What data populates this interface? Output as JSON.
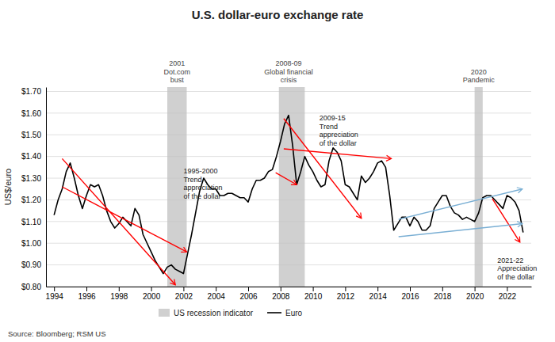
{
  "chart_data": {
    "type": "line",
    "title": "U.S. dollar-euro exchange rate",
    "y_label": "US$/euro",
    "source": "Source: Bloomberg; RSM US",
    "xlim": [
      1993.5,
      2023.5
    ],
    "xticks": [
      1994,
      1996,
      1998,
      2000,
      2002,
      2004,
      2006,
      2008,
      2010,
      2012,
      2014,
      2016,
      2018,
      2020,
      2022
    ],
    "ylim": [
      0.8,
      1.72
    ],
    "yticks": [
      {
        "value": 0.8,
        "label": "$0.80"
      },
      {
        "value": 0.9,
        "label": "$0.90"
      },
      {
        "value": 1.0,
        "label": "$1.00"
      },
      {
        "value": 1.1,
        "label": "$1.10"
      },
      {
        "value": 1.2,
        "label": "$1.20"
      },
      {
        "value": 1.3,
        "label": "$1.30"
      },
      {
        "value": 1.4,
        "label": "$1.40"
      },
      {
        "value": 1.5,
        "label": "$1.50"
      },
      {
        "value": 1.6,
        "label": "$1.60"
      },
      {
        "value": 1.7,
        "label": "$1.70"
      }
    ],
    "grid": true,
    "bands": {
      "name": "US recession indicator",
      "color": "#c0c0c0",
      "ranges": [
        [
          2001.0,
          2002.2
        ],
        [
          2007.9,
          2009.5
        ],
        [
          2020.0,
          2020.5
        ]
      ]
    },
    "x": [
      1994.0,
      1994.25,
      1994.5,
      1994.75,
      1995.0,
      1995.25,
      1995.5,
      1995.75,
      1996.0,
      1996.25,
      1996.5,
      1996.75,
      1997.0,
      1997.25,
      1997.5,
      1997.75,
      1998.0,
      1998.25,
      1998.5,
      1998.75,
      1999.0,
      1999.25,
      1999.5,
      1999.75,
      2000.0,
      2000.25,
      2000.5,
      2000.75,
      2001.0,
      2001.25,
      2001.5,
      2001.75,
      2002.0,
      2002.25,
      2002.5,
      2002.75,
      2003.0,
      2003.25,
      2003.5,
      2003.75,
      2004.0,
      2004.25,
      2004.5,
      2004.75,
      2005.0,
      2005.25,
      2005.5,
      2005.75,
      2006.0,
      2006.25,
      2006.5,
      2006.75,
      2007.0,
      2007.25,
      2007.5,
      2007.75,
      2008.0,
      2008.25,
      2008.5,
      2008.75,
      2009.0,
      2009.25,
      2009.5,
      2009.75,
      2010.0,
      2010.25,
      2010.5,
      2010.75,
      2011.0,
      2011.25,
      2011.5,
      2011.75,
      2012.0,
      2012.25,
      2012.5,
      2012.75,
      2013.0,
      2013.25,
      2013.5,
      2013.75,
      2014.0,
      2014.25,
      2014.5,
      2014.75,
      2015.0,
      2015.25,
      2015.5,
      2015.75,
      2016.0,
      2016.25,
      2016.5,
      2016.75,
      2017.0,
      2017.25,
      2017.5,
      2017.75,
      2018.0,
      2018.25,
      2018.5,
      2018.75,
      2019.0,
      2019.25,
      2019.5,
      2019.75,
      2020.0,
      2020.25,
      2020.5,
      2020.75,
      2021.0,
      2021.25,
      2021.5,
      2021.75,
      2022.0,
      2022.25,
      2022.5,
      2022.75,
      2023.0
    ],
    "series": [
      {
        "name": "Euro",
        "color": "#000000",
        "values": [
          1.13,
          1.2,
          1.25,
          1.33,
          1.37,
          1.3,
          1.22,
          1.16,
          1.22,
          1.27,
          1.26,
          1.27,
          1.22,
          1.15,
          1.1,
          1.07,
          1.09,
          1.12,
          1.1,
          1.08,
          1.16,
          1.13,
          1.04,
          1.0,
          0.96,
          0.92,
          0.89,
          0.86,
          0.89,
          0.9,
          0.88,
          0.87,
          0.86,
          0.95,
          1.04,
          1.14,
          1.24,
          1.3,
          1.27,
          1.25,
          1.25,
          1.22,
          1.22,
          1.23,
          1.23,
          1.22,
          1.21,
          1.21,
          1.19,
          1.25,
          1.29,
          1.29,
          1.3,
          1.33,
          1.34,
          1.4,
          1.47,
          1.55,
          1.59,
          1.45,
          1.27,
          1.33,
          1.4,
          1.36,
          1.33,
          1.29,
          1.26,
          1.27,
          1.38,
          1.44,
          1.42,
          1.38,
          1.27,
          1.26,
          1.23,
          1.2,
          1.31,
          1.28,
          1.3,
          1.33,
          1.37,
          1.38,
          1.35,
          1.22,
          1.06,
          1.09,
          1.12,
          1.12,
          1.08,
          1.12,
          1.1,
          1.06,
          1.06,
          1.08,
          1.16,
          1.19,
          1.22,
          1.22,
          1.17,
          1.14,
          1.13,
          1.11,
          1.12,
          1.11,
          1.1,
          1.14,
          1.21,
          1.22,
          1.22,
          1.2,
          1.18,
          1.16,
          1.22,
          1.21,
          1.19,
          1.15,
          1.05
        ]
      }
    ],
    "arrows": [
      {
        "x": [
          1994.5,
          2001.5
        ],
        "y": [
          1.39,
          0.808
        ],
        "color": "red"
      },
      {
        "x": [
          1994.5,
          2002.2
        ],
        "y": [
          1.26,
          0.96
        ],
        "color": "red"
      },
      {
        "x": [
          2007.7,
          2009.0
        ],
        "y": [
          1.325,
          1.27
        ],
        "color": "red"
      },
      {
        "x": [
          2008.2,
          2013.0
        ],
        "y": [
          1.575,
          1.115
        ],
        "color": "red"
      },
      {
        "x": [
          2008.2,
          2014.85
        ],
        "y": [
          1.435,
          1.39
        ],
        "color": "red"
      },
      {
        "x": [
          2021.1,
          2022.8
        ],
        "y": [
          1.205,
          1.005
        ],
        "color": "red"
      },
      {
        "x": [
          2015.3,
          2022.95
        ],
        "y": [
          1.11,
          1.25
        ],
        "color": "#7aafd4"
      },
      {
        "x": [
          2015.3,
          2022.95
        ],
        "y": [
          1.03,
          1.09
        ],
        "color": "#7aafd4"
      }
    ],
    "events": [
      {
        "text": "2001\nDot.com\nbust",
        "x": 2001.6
      },
      {
        "text": "2008-09\nGlobal financial\ncrisis",
        "x": 2008.5
      },
      {
        "text": "2020\nPandemic",
        "x": 2020.25
      }
    ],
    "annotations": [
      {
        "text": "1995-2000\nTrend\nappreciation\nof the dollar",
        "x": 2002.0,
        "y": 1.35
      },
      {
        "text": "2009-15\nTrend\nappreciation\nof the dollar",
        "x": 2010.4,
        "y": 1.595
      },
      {
        "text": "2021-22\nAppreciation\nof the dollar",
        "x": 2021.4,
        "y": 0.94
      }
    ]
  }
}
